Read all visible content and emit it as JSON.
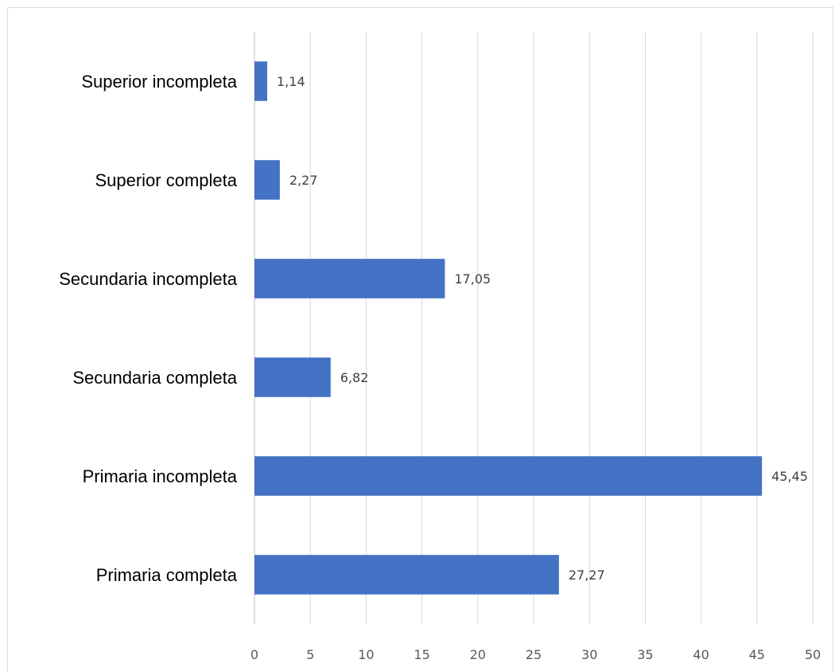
{
  "chart_data": {
    "type": "bar",
    "orientation": "horizontal",
    "categories": [
      "Primaria completa",
      "Primaria incompleta",
      "Secundaria completa",
      "Secundaria incompleta",
      "Superior completa",
      "Superior incompleta"
    ],
    "values": [
      27.27,
      45.45,
      6.82,
      17.05,
      2.27,
      1.14
    ],
    "value_labels": [
      "27,27",
      "45,45",
      "6,82",
      "17,05",
      "2,27",
      "1,14"
    ],
    "xlim": [
      0,
      50
    ],
    "xticks": [
      0,
      5,
      10,
      15,
      20,
      25,
      30,
      35,
      40,
      45,
      50
    ],
    "grid": "vertical",
    "bar_color": "#4472c4",
    "title": "",
    "xlabel": "",
    "ylabel": ""
  }
}
